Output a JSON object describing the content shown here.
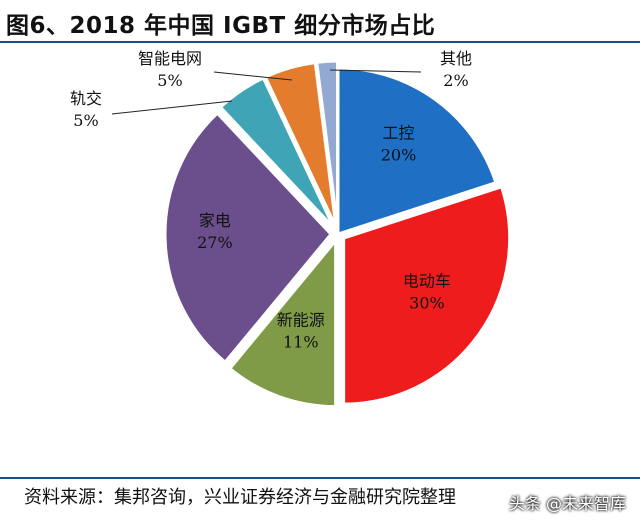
{
  "title": "图6、2018 年中国 IGBT 细分市场占比",
  "source": "资料来源：集邦咨询，兴业证券经济与金融研究院整理",
  "watermark": "头条 @未来智库",
  "chart_data": {
    "type": "pie",
    "title": "图6、2018 年中国 IGBT 细分市场占比",
    "start_angle_deg": 0,
    "direction": "clockwise",
    "slices": [
      {
        "label": "工控",
        "value": 20,
        "value_label": "20%",
        "color": "#1f6fc4",
        "exploded": false
      },
      {
        "label": "电动车",
        "value": 30,
        "value_label": "30%",
        "color": "#ee1c1c",
        "exploded": true
      },
      {
        "label": "新能源",
        "value": 11,
        "value_label": "11%",
        "color": "#7f9b47",
        "exploded": true
      },
      {
        "label": "家电",
        "value": 27,
        "value_label": "27%",
        "color": "#6a4f8c",
        "exploded": true
      },
      {
        "label": "轨交",
        "value": 5,
        "value_label": "5%",
        "color": "#3fa5b6",
        "exploded": true
      },
      {
        "label": "智能电网",
        "value": 5,
        "value_label": "5%",
        "color": "#e47c2d",
        "exploded": true
      },
      {
        "label": "其他",
        "value": 2,
        "value_label": "2%",
        "color": "#93a9d2",
        "exploded": true
      }
    ]
  }
}
